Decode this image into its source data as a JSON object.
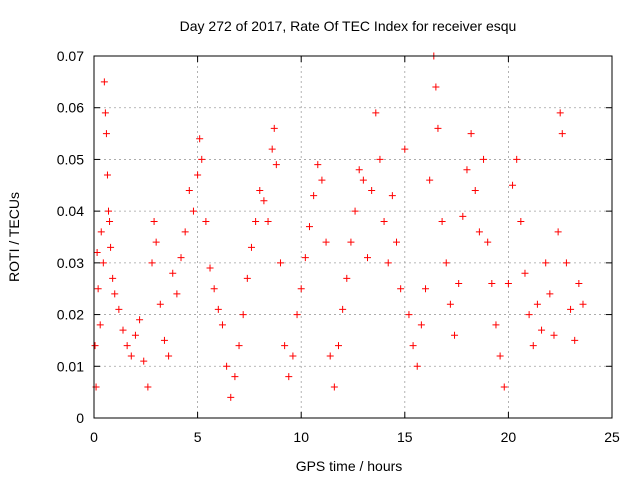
{
  "chart_data": {
    "type": "scatter",
    "title": "Day 272 of 2017, Rate Of TEC Index for receiver esqu",
    "xlabel": "GPS time / hours",
    "ylabel": "ROTI / TECUs",
    "xlim": [
      0,
      25
    ],
    "ylim": [
      0,
      0.07
    ],
    "x_ticks": [
      0,
      5,
      10,
      15,
      20,
      25
    ],
    "x_tick_labels": [
      "0",
      "5",
      "10",
      "15",
      "20",
      "25"
    ],
    "y_ticks": [
      0,
      0.01,
      0.02,
      0.03,
      0.04,
      0.05,
      0.06,
      0.07
    ],
    "y_tick_labels": [
      "0",
      "0.01",
      "0.02",
      "0.03",
      "0.04",
      "0.05",
      "0.06",
      "0.07"
    ],
    "grid": true,
    "marker": "plus",
    "color": "#ff0000",
    "series": [
      {
        "name": "ROTI",
        "points": [
          [
            0.05,
            0.014
          ],
          [
            0.1,
            0.006
          ],
          [
            0.15,
            0.032
          ],
          [
            0.2,
            0.025
          ],
          [
            0.3,
            0.018
          ],
          [
            0.35,
            0.036
          ],
          [
            0.45,
            0.03
          ],
          [
            0.5,
            0.065
          ],
          [
            0.55,
            0.059
          ],
          [
            0.6,
            0.055
          ],
          [
            0.65,
            0.047
          ],
          [
            0.7,
            0.04
          ],
          [
            0.75,
            0.038
          ],
          [
            0.8,
            0.033
          ],
          [
            0.9,
            0.027
          ],
          [
            1.0,
            0.024
          ],
          [
            1.2,
            0.021
          ],
          [
            1.4,
            0.017
          ],
          [
            1.6,
            0.014
          ],
          [
            1.8,
            0.012
          ],
          [
            2.0,
            0.016
          ],
          [
            2.2,
            0.019
          ],
          [
            2.4,
            0.011
          ],
          [
            2.6,
            0.006
          ],
          [
            2.8,
            0.03
          ],
          [
            2.9,
            0.038
          ],
          [
            3.0,
            0.034
          ],
          [
            3.2,
            0.022
          ],
          [
            3.4,
            0.015
          ],
          [
            3.6,
            0.012
          ],
          [
            3.8,
            0.028
          ],
          [
            4.0,
            0.024
          ],
          [
            4.2,
            0.031
          ],
          [
            4.4,
            0.036
          ],
          [
            4.6,
            0.044
          ],
          [
            4.8,
            0.04
          ],
          [
            5.0,
            0.047
          ],
          [
            5.1,
            0.054
          ],
          [
            5.2,
            0.05
          ],
          [
            5.4,
            0.038
          ],
          [
            5.6,
            0.029
          ],
          [
            5.8,
            0.025
          ],
          [
            6.0,
            0.021
          ],
          [
            6.2,
            0.018
          ],
          [
            6.4,
            0.01
          ],
          [
            6.6,
            0.004
          ],
          [
            6.8,
            0.008
          ],
          [
            7.0,
            0.014
          ],
          [
            7.2,
            0.02
          ],
          [
            7.4,
            0.027
          ],
          [
            7.6,
            0.033
          ],
          [
            7.8,
            0.038
          ],
          [
            8.0,
            0.044
          ],
          [
            8.2,
            0.042
          ],
          [
            8.4,
            0.038
          ],
          [
            8.6,
            0.052
          ],
          [
            8.7,
            0.056
          ],
          [
            8.8,
            0.049
          ],
          [
            9.0,
            0.03
          ],
          [
            9.2,
            0.014
          ],
          [
            9.4,
            0.008
          ],
          [
            9.6,
            0.012
          ],
          [
            9.8,
            0.02
          ],
          [
            10.0,
            0.025
          ],
          [
            10.2,
            0.031
          ],
          [
            10.4,
            0.037
          ],
          [
            10.6,
            0.043
          ],
          [
            10.8,
            0.049
          ],
          [
            11.0,
            0.046
          ],
          [
            11.2,
            0.034
          ],
          [
            11.4,
            0.012
          ],
          [
            11.6,
            0.006
          ],
          [
            11.8,
            0.014
          ],
          [
            12.0,
            0.021
          ],
          [
            12.2,
            0.027
          ],
          [
            12.4,
            0.034
          ],
          [
            12.6,
            0.04
          ],
          [
            12.8,
            0.048
          ],
          [
            13.0,
            0.046
          ],
          [
            13.2,
            0.031
          ],
          [
            13.4,
            0.044
          ],
          [
            13.6,
            0.059
          ],
          [
            13.8,
            0.05
          ],
          [
            14.0,
            0.038
          ],
          [
            14.2,
            0.03
          ],
          [
            14.4,
            0.043
          ],
          [
            14.6,
            0.034
          ],
          [
            14.8,
            0.025
          ],
          [
            15.0,
            0.052
          ],
          [
            15.2,
            0.02
          ],
          [
            15.4,
            0.014
          ],
          [
            15.6,
            0.01
          ],
          [
            15.8,
            0.018
          ],
          [
            16.0,
            0.025
          ],
          [
            16.2,
            0.046
          ],
          [
            16.4,
            0.07
          ],
          [
            16.5,
            0.064
          ],
          [
            16.6,
            0.056
          ],
          [
            16.8,
            0.038
          ],
          [
            17.0,
            0.03
          ],
          [
            17.2,
            0.022
          ],
          [
            17.4,
            0.016
          ],
          [
            17.6,
            0.026
          ],
          [
            17.8,
            0.039
          ],
          [
            18.0,
            0.048
          ],
          [
            18.2,
            0.055
          ],
          [
            18.4,
            0.044
          ],
          [
            18.6,
            0.036
          ],
          [
            18.8,
            0.05
          ],
          [
            19.0,
            0.034
          ],
          [
            19.2,
            0.026
          ],
          [
            19.4,
            0.018
          ],
          [
            19.6,
            0.012
          ],
          [
            19.8,
            0.006
          ],
          [
            20.0,
            0.026
          ],
          [
            20.2,
            0.045
          ],
          [
            20.4,
            0.05
          ],
          [
            20.6,
            0.038
          ],
          [
            20.8,
            0.028
          ],
          [
            21.0,
            0.02
          ],
          [
            21.2,
            0.014
          ],
          [
            21.4,
            0.022
          ],
          [
            21.6,
            0.017
          ],
          [
            21.8,
            0.03
          ],
          [
            22.0,
            0.024
          ],
          [
            22.2,
            0.016
          ],
          [
            22.4,
            0.036
          ],
          [
            22.5,
            0.059
          ],
          [
            22.6,
            0.055
          ],
          [
            22.8,
            0.03
          ],
          [
            23.0,
            0.021
          ],
          [
            23.2,
            0.015
          ],
          [
            23.4,
            0.026
          ],
          [
            23.6,
            0.022
          ]
        ]
      }
    ]
  }
}
